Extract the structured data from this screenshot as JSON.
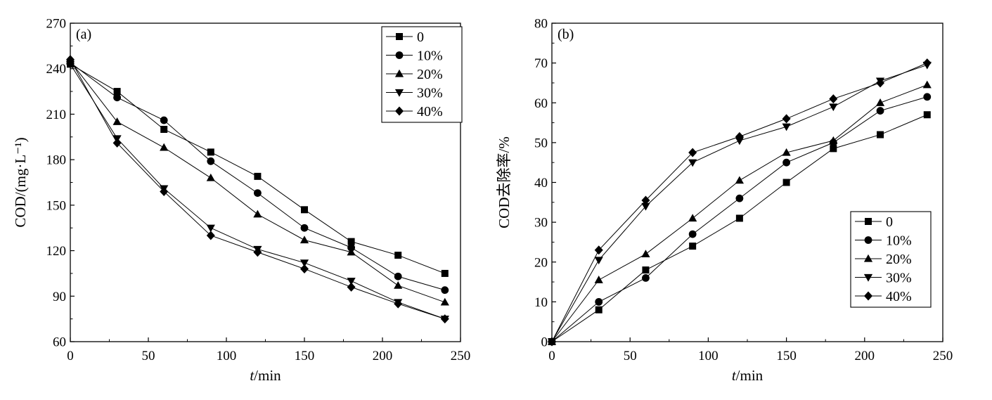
{
  "chart_data": [
    {
      "type": "line",
      "panel_label": "(a)",
      "xlabel_italic": "t",
      "xlabel_rest": "/min",
      "ylabel": "COD/(mg·L⁻¹)",
      "xlim": [
        0,
        250
      ],
      "ylim": [
        60,
        270
      ],
      "xticks": [
        0,
        50,
        100,
        150,
        200,
        250
      ],
      "yticks": [
        60,
        90,
        120,
        150,
        180,
        210,
        240,
        270
      ],
      "grid": false,
      "legend_position": "top-right",
      "x": [
        0,
        30,
        60,
        90,
        120,
        150,
        180,
        210,
        240
      ],
      "series": [
        {
          "name": "0",
          "marker": "square",
          "values": [
            243,
            225,
            200,
            185,
            169,
            147,
            126,
            117,
            105
          ]
        },
        {
          "name": "10%",
          "marker": "circle",
          "values": [
            244,
            221,
            206,
            179,
            158,
            135,
            122,
            103,
            94
          ]
        },
        {
          "name": "20%",
          "marker": "triangle-up",
          "values": [
            245,
            205,
            188,
            168,
            144,
            127,
            119,
            97,
            86
          ]
        },
        {
          "name": "30%",
          "marker": "triangle-down",
          "values": [
            243,
            194,
            161,
            135,
            121,
            112,
            100,
            86,
            75
          ]
        },
        {
          "name": "40%",
          "marker": "diamond",
          "values": [
            246,
            191,
            159,
            130,
            119,
            108,
            96,
            85,
            75
          ]
        }
      ]
    },
    {
      "type": "line",
      "panel_label": "(b)",
      "xlabel_italic": "t",
      "xlabel_rest": "/min",
      "ylabel": "COD去除率/%",
      "xlim": [
        0,
        250
      ],
      "ylim": [
        0,
        80
      ],
      "xticks": [
        0,
        50,
        100,
        150,
        200,
        250
      ],
      "yticks": [
        0,
        10,
        20,
        30,
        40,
        50,
        60,
        70,
        80
      ],
      "grid": false,
      "legend_position": "bottom-right",
      "x": [
        0,
        30,
        60,
        90,
        120,
        150,
        180,
        210,
        240
      ],
      "series": [
        {
          "name": "0",
          "marker": "square",
          "values": [
            0,
            8,
            18,
            24,
            31,
            40,
            48.5,
            52,
            57
          ]
        },
        {
          "name": "10%",
          "marker": "circle",
          "values": [
            0,
            10,
            16,
            27,
            36,
            45,
            50,
            58,
            61.5
          ]
        },
        {
          "name": "20%",
          "marker": "triangle-up",
          "values": [
            0,
            15.5,
            22,
            31,
            40.5,
            47.5,
            50.5,
            60,
            64.5
          ]
        },
        {
          "name": "30%",
          "marker": "triangle-down",
          "values": [
            0,
            20.5,
            34,
            45,
            50.5,
            54,
            59,
            65.5,
            69.5
          ]
        },
        {
          "name": "40%",
          "marker": "diamond",
          "values": [
            0,
            23,
            35.5,
            47.5,
            51.5,
            56,
            61,
            65,
            70
          ]
        }
      ]
    }
  ]
}
